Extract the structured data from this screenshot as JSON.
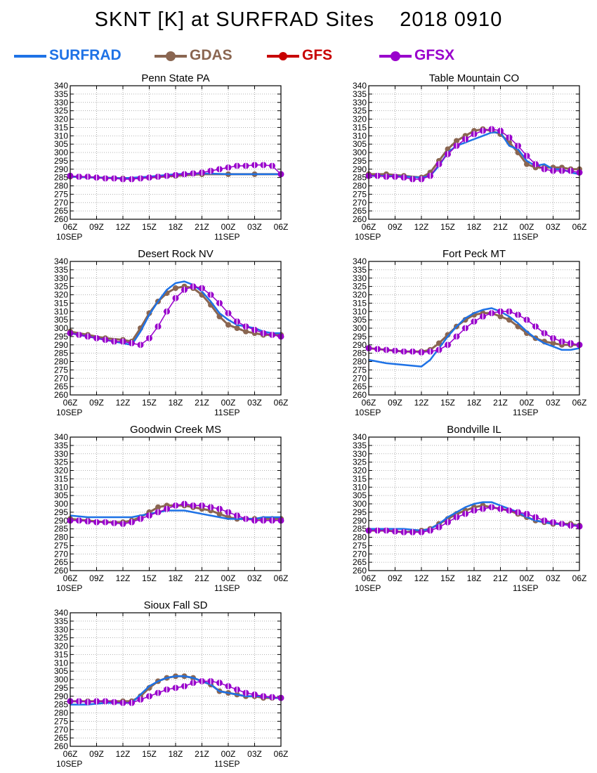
{
  "figure": {
    "title": "SKNT [K] at SURFRAD Sites    2018 0910",
    "legend": [
      {
        "name": "SURFRAD",
        "color": "#1e72e6",
        "marker": "none"
      },
      {
        "name": "GDAS",
        "color": "#8a6651",
        "marker": "circle"
      },
      {
        "name": "GFS",
        "color": "#c80000",
        "marker": "circle"
      },
      {
        "name": "GFSX",
        "color": "#9900cc",
        "marker": "circle"
      }
    ],
    "x_tick_labels": [
      "06Z",
      "09Z",
      "12Z",
      "15Z",
      "18Z",
      "21Z",
      "00Z",
      "03Z",
      "06Z"
    ],
    "date_labels": [
      {
        "text": "10SEP",
        "at_tick": 0
      },
      {
        "text": "11SEP",
        "at_tick": 6
      }
    ],
    "y_ticks": [
      260,
      265,
      270,
      275,
      280,
      285,
      290,
      295,
      300,
      305,
      310,
      315,
      320,
      325,
      330,
      335,
      340
    ]
  },
  "chart_data": [
    {
      "type": "line",
      "title": "Penn State PA",
      "x_unit": "hours since 06Z 10SEP",
      "ylim": [
        260,
        340
      ],
      "xlim": [
        0,
        24
      ],
      "grid": true,
      "series": [
        {
          "name": "SURFRAD",
          "x": [
            0,
            3,
            6,
            9,
            12,
            15,
            18,
            21,
            24
          ],
          "y": [
            285.5,
            285,
            284.5,
            285.5,
            287,
            287.5,
            287,
            287,
            287
          ]
        },
        {
          "name": "GDAS",
          "x": [
            0,
            3,
            6,
            9,
            12,
            15,
            18,
            21,
            24
          ],
          "y": [
            285.5,
            285,
            284.5,
            285,
            286,
            287,
            287,
            287,
            287
          ]
        },
        {
          "name": "GFSX",
          "x": [
            0,
            1,
            2,
            3,
            4,
            5,
            6,
            7,
            8,
            9,
            10,
            11,
            12,
            13,
            14,
            15,
            16,
            17,
            18,
            19,
            20,
            21,
            22,
            23,
            24
          ],
          "y": [
            286,
            285.5,
            285.5,
            285,
            284.5,
            284.5,
            284,
            284,
            284.5,
            285,
            285.5,
            286,
            286.5,
            287,
            287.5,
            288,
            289,
            290,
            291,
            292,
            292,
            292.5,
            292.5,
            292,
            287
          ]
        }
      ]
    },
    {
      "type": "line",
      "title": "Table Mountain CO",
      "x_unit": "hours since 06Z 10SEP",
      "ylim": [
        260,
        340
      ],
      "xlim": [
        0,
        24
      ],
      "grid": true,
      "series": [
        {
          "name": "SURFRAD",
          "x": [
            0,
            2,
            4,
            6,
            7,
            8,
            9,
            10,
            11,
            12,
            13,
            14,
            15,
            16,
            17,
            18,
            19,
            20,
            21,
            22,
            23,
            24
          ],
          "y": [
            286,
            286,
            285.5,
            285,
            286,
            292,
            300,
            304,
            306,
            308,
            310,
            312,
            312,
            304,
            302,
            295,
            292,
            293,
            290,
            290,
            288,
            287
          ]
        },
        {
          "name": "GDAS",
          "x": [
            0,
            2,
            4,
            6,
            7,
            8,
            9,
            10,
            11,
            12,
            13,
            14,
            15,
            16,
            17,
            18,
            19,
            20,
            21,
            22,
            23,
            24
          ],
          "y": [
            287,
            287,
            286,
            285,
            288,
            295,
            302,
            307,
            310,
            313,
            314,
            313,
            311,
            306,
            300,
            293,
            291,
            291,
            291,
            291,
            290,
            290
          ]
        },
        {
          "name": "GFSX",
          "x": [
            0,
            1,
            2,
            3,
            4,
            5,
            6,
            7,
            8,
            9,
            10,
            11,
            12,
            13,
            14,
            15,
            16,
            17,
            18,
            19,
            20,
            21,
            22,
            23,
            24
          ],
          "y": [
            286,
            286,
            285.5,
            285.5,
            285,
            284,
            284,
            286,
            293,
            299,
            304,
            308,
            311,
            313,
            314,
            313,
            309,
            304,
            298,
            293,
            290,
            289,
            289,
            289,
            288
          ]
        }
      ]
    },
    {
      "type": "line",
      "title": "Desert Rock NV",
      "x_unit": "hours since 06Z 10SEP",
      "ylim": [
        260,
        340
      ],
      "xlim": [
        0,
        24
      ],
      "grid": true,
      "series": [
        {
          "name": "SURFRAD",
          "x": [
            0,
            2,
            4,
            6,
            7,
            8,
            9,
            10,
            11,
            12,
            13,
            14,
            15,
            16,
            17,
            18,
            19,
            20,
            21,
            22,
            23,
            24
          ],
          "y": [
            297,
            295,
            293,
            291,
            290,
            298,
            308,
            316,
            323,
            327,
            328,
            326,
            322,
            316,
            309,
            305,
            302,
            301,
            300,
            298,
            297,
            297
          ]
        },
        {
          "name": "GDAS",
          "x": [
            0,
            2,
            4,
            6,
            7,
            8,
            9,
            10,
            11,
            12,
            13,
            14,
            15,
            16,
            17,
            18,
            19,
            20,
            21,
            22,
            23,
            24
          ],
          "y": [
            298,
            296,
            294,
            293,
            292,
            300,
            309,
            316,
            321,
            324,
            325,
            324,
            320,
            314,
            307,
            302,
            300,
            298,
            297,
            296,
            296,
            296
          ]
        },
        {
          "name": "GFSX",
          "x": [
            0,
            1,
            2,
            3,
            4,
            5,
            6,
            7,
            8,
            9,
            10,
            11,
            12,
            13,
            14,
            15,
            16,
            17,
            18,
            19,
            20,
            21,
            22,
            23,
            24
          ],
          "y": [
            297,
            296,
            295,
            294,
            293,
            292,
            292,
            291,
            290,
            294,
            301,
            310,
            318,
            323,
            325,
            324,
            320,
            315,
            309,
            304,
            301,
            299,
            297,
            296,
            295
          ]
        }
      ]
    },
    {
      "type": "line",
      "title": "Fort Peck MT",
      "x_unit": "hours since 06Z 10SEP",
      "ylim": [
        260,
        340
      ],
      "xlim": [
        0,
        24
      ],
      "grid": true,
      "series": [
        {
          "name": "SURFRAD",
          "x": [
            0,
            2,
            4,
            6,
            7,
            8,
            9,
            10,
            11,
            12,
            13,
            14,
            15,
            16,
            17,
            18,
            19,
            20,
            21,
            22,
            23,
            24
          ],
          "y": [
            281,
            279,
            278,
            277,
            281,
            288,
            295,
            301,
            306,
            309,
            311,
            312,
            310,
            307,
            303,
            298,
            294,
            291,
            289,
            287,
            287,
            288
          ]
        },
        {
          "name": "GDAS",
          "x": [
            0,
            2,
            4,
            6,
            7,
            8,
            9,
            10,
            11,
            12,
            13,
            14,
            15,
            16,
            17,
            18,
            19,
            20,
            21,
            22,
            23,
            24
          ],
          "y": [
            288,
            287,
            286,
            286,
            287,
            291,
            296,
            301,
            305,
            308,
            309,
            309,
            307,
            305,
            301,
            297,
            294,
            292,
            291,
            290,
            290,
            290
          ]
        },
        {
          "name": "GFSX",
          "x": [
            0,
            1,
            2,
            3,
            4,
            5,
            6,
            7,
            8,
            9,
            10,
            11,
            12,
            13,
            14,
            15,
            16,
            17,
            18,
            19,
            20,
            21,
            22,
            23,
            24
          ],
          "y": [
            288,
            287.5,
            287,
            286.5,
            286,
            286,
            285.5,
            286,
            287,
            290,
            295,
            300,
            304,
            307,
            309,
            310,
            310,
            308,
            305,
            301,
            297,
            294,
            292,
            291,
            290
          ]
        }
      ]
    },
    {
      "type": "line",
      "title": "Goodwin Creek MS",
      "x_unit": "hours since 06Z 10SEP",
      "ylim": [
        260,
        340
      ],
      "xlim": [
        0,
        24
      ],
      "grid": true,
      "series": [
        {
          "name": "SURFRAD",
          "x": [
            0,
            2,
            4,
            6,
            7,
            8,
            9,
            10,
            11,
            12,
            13,
            14,
            15,
            16,
            17,
            18,
            19,
            20,
            21,
            22,
            23,
            24
          ],
          "y": [
            293,
            292,
            292,
            292,
            292,
            293,
            294,
            295,
            296,
            296,
            296,
            295,
            294,
            293,
            292,
            291,
            291,
            291,
            291,
            292,
            292,
            292
          ]
        },
        {
          "name": "GDAS",
          "x": [
            0,
            2,
            4,
            6,
            7,
            8,
            9,
            10,
            11,
            12,
            13,
            14,
            15,
            16,
            17,
            18,
            19,
            20,
            21,
            22,
            23,
            24
          ],
          "y": [
            291,
            290,
            289,
            289,
            290,
            292,
            295,
            298,
            299,
            299,
            299,
            298,
            297,
            296,
            294,
            292,
            291,
            291,
            291,
            291,
            291,
            291
          ]
        },
        {
          "name": "GFSX",
          "x": [
            0,
            1,
            2,
            3,
            4,
            5,
            6,
            7,
            8,
            9,
            10,
            11,
            12,
            13,
            14,
            15,
            16,
            17,
            18,
            19,
            20,
            21,
            22,
            23,
            24
          ],
          "y": [
            290,
            290,
            289.5,
            289,
            289,
            288.5,
            288,
            289,
            291,
            293,
            295,
            297,
            299,
            300,
            299,
            299,
            298,
            297,
            295,
            293,
            291,
            290,
            290,
            290,
            290
          ]
        }
      ]
    },
    {
      "type": "line",
      "title": "Bondville IL",
      "x_unit": "hours since 06Z 10SEP",
      "ylim": [
        260,
        340
      ],
      "xlim": [
        0,
        24
      ],
      "grid": true,
      "series": [
        {
          "name": "SURFRAD",
          "x": [
            0,
            2,
            4,
            6,
            7,
            8,
            9,
            10,
            11,
            12,
            13,
            14,
            15,
            16,
            17,
            18,
            19,
            20,
            21,
            22,
            23,
            24
          ],
          "y": [
            285,
            285,
            285,
            284,
            285,
            288,
            292,
            295,
            298,
            300,
            301,
            301,
            299,
            297,
            295,
            292,
            290,
            289,
            288,
            288,
            287,
            287
          ]
        },
        {
          "name": "GDAS",
          "x": [
            0,
            2,
            4,
            6,
            7,
            8,
            9,
            10,
            11,
            12,
            13,
            14,
            15,
            16,
            17,
            18,
            19,
            20,
            21,
            22,
            23,
            24
          ],
          "y": [
            284,
            284,
            283,
            284,
            285,
            288,
            291,
            294,
            296,
            298,
            299,
            298,
            297,
            296,
            294,
            292,
            290,
            289,
            288,
            288,
            288,
            287
          ]
        },
        {
          "name": "GFSX",
          "x": [
            0,
            1,
            2,
            3,
            4,
            5,
            6,
            7,
            8,
            9,
            10,
            11,
            12,
            13,
            14,
            15,
            16,
            17,
            18,
            19,
            20,
            21,
            22,
            23,
            24
          ],
          "y": [
            284,
            284,
            284,
            283.5,
            283,
            283,
            283,
            284,
            286,
            289,
            292,
            294,
            296,
            297,
            298,
            297,
            296,
            295,
            294,
            292,
            290,
            289,
            288,
            287,
            286.5
          ]
        }
      ]
    },
    {
      "type": "line",
      "title": "Sioux Fall SD",
      "x_unit": "hours since 06Z 10SEP",
      "ylim": [
        260,
        340
      ],
      "xlim": [
        0,
        24
      ],
      "grid": true,
      "series": [
        {
          "name": "SURFRAD",
          "x": [
            0,
            2,
            4,
            6,
            7,
            8,
            9,
            10,
            11,
            12,
            13,
            14,
            15,
            16,
            17,
            18,
            19,
            20,
            21,
            22,
            23,
            24
          ],
          "y": [
            285,
            285,
            286,
            286,
            286,
            291,
            296,
            299,
            301,
            302,
            302,
            301,
            299,
            297,
            293,
            292,
            291,
            290,
            290,
            290,
            289,
            289
          ]
        },
        {
          "name": "GDAS",
          "x": [
            0,
            2,
            4,
            6,
            7,
            8,
            9,
            10,
            11,
            12,
            13,
            14,
            15,
            16,
            17,
            18,
            19,
            20,
            21,
            22,
            23,
            24
          ],
          "y": [
            287,
            287,
            287,
            287,
            287,
            290,
            295,
            299,
            301,
            302,
            302,
            301,
            299,
            297,
            293,
            292,
            291,
            290,
            290,
            289,
            289,
            289
          ]
        },
        {
          "name": "GFSX",
          "x": [
            0,
            1,
            2,
            3,
            4,
            5,
            6,
            7,
            8,
            9,
            10,
            11,
            12,
            13,
            14,
            15,
            16,
            17,
            18,
            19,
            20,
            21,
            22,
            23,
            24
          ],
          "y": [
            287,
            287,
            286.5,
            287,
            287,
            286.5,
            286,
            286,
            288,
            290,
            292,
            294,
            295,
            296,
            298,
            299,
            299,
            298,
            296,
            294,
            292,
            291,
            290,
            289.5,
            289
          ]
        }
      ]
    }
  ]
}
